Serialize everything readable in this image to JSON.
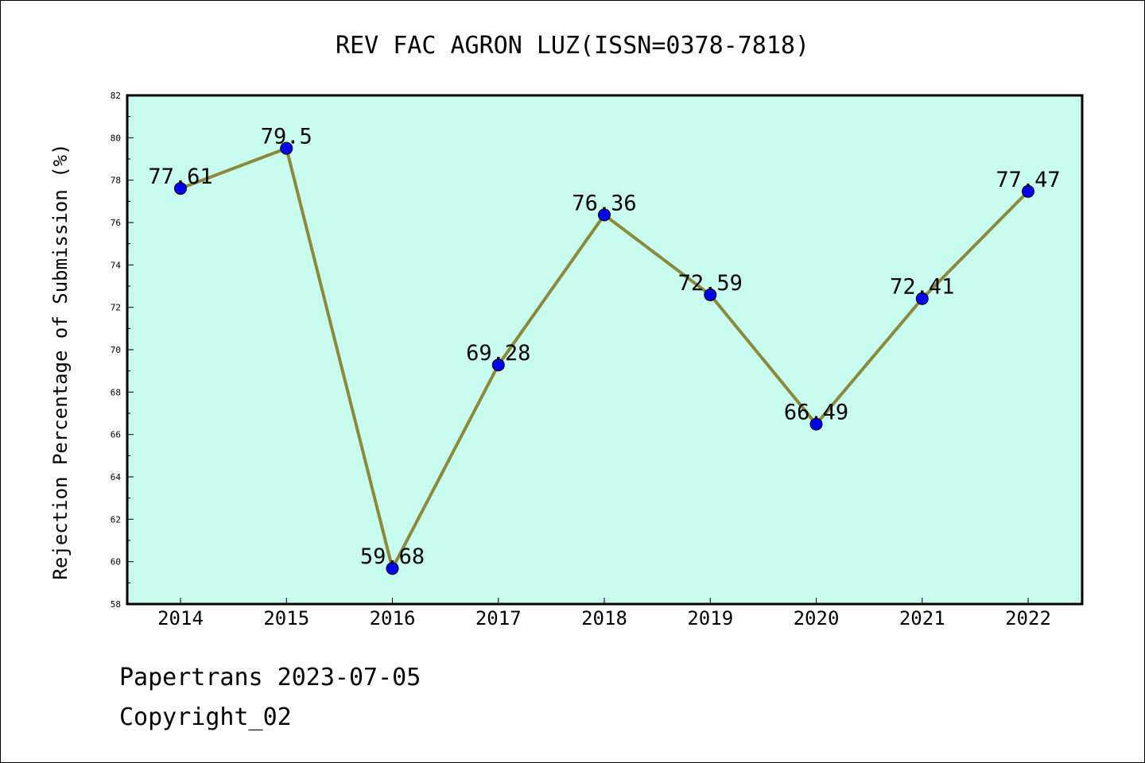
{
  "chart_data": {
    "type": "line",
    "title": "REV FAC AGRON LUZ(ISSN=0378-7818)",
    "xlabel": "",
    "ylabel": "Rejection Percentage of Submission (%)",
    "categories": [
      "2014",
      "2015",
      "2016",
      "2017",
      "2018",
      "2019",
      "2020",
      "2021",
      "2022"
    ],
    "values": [
      77.61,
      79.5,
      59.68,
      69.28,
      76.36,
      72.59,
      66.49,
      72.41,
      77.47
    ],
    "data_labels": [
      "77.61",
      "79.5",
      "59.68",
      "69.28",
      "76.36",
      "72.59",
      "66.49",
      "72.41",
      "77.47"
    ],
    "ylim": [
      58,
      82
    ],
    "yticks": [
      58,
      60,
      62,
      64,
      66,
      68,
      70,
      72,
      74,
      76,
      78,
      80,
      82
    ],
    "grid": false,
    "colors": {
      "plot_background": "#c8fcee",
      "line": "#8b8a3a",
      "marker": "#0000ee"
    }
  },
  "footer": {
    "line1": "Papertrans 2023-07-05",
    "line2": "Copyright_02"
  }
}
